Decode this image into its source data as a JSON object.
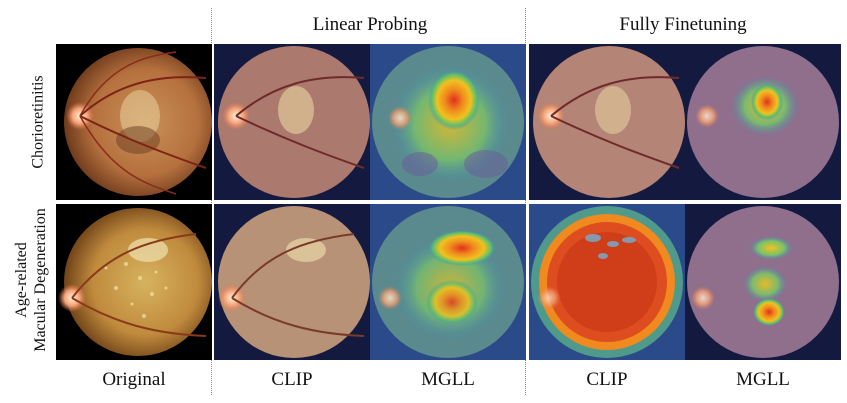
{
  "group_titles": {
    "linear_probing": "Linear Probing",
    "fully_finetuning": "Fully Finetuning"
  },
  "column_labels": {
    "original": "Original",
    "lp_clip": "CLIP",
    "lp_mgll": "MGLL",
    "ft_clip": "CLIP",
    "ft_mgll": "MGLL"
  },
  "row_labels": {
    "row1": "Chorioretinitis",
    "row2_line1": "Age-related",
    "row2_line2": "Macular Degeneration"
  },
  "colors": {
    "fundus_orange": "#c9874a",
    "heat_hot": "#e0301c",
    "heat_warm": "#f0c21e",
    "heat_cool": "#3f8fb8",
    "heat_background": "#1c2a6b"
  }
}
